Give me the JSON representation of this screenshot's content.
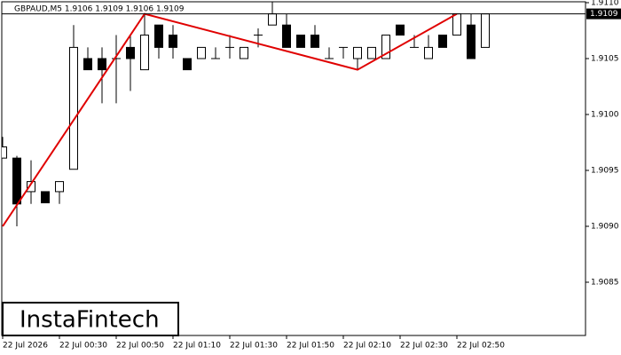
{
  "chart_data": {
    "type": "candlestick",
    "title": "GBPAUD,M5  1.9106 1.9109 1.9106 1.9109",
    "categories": [
      "22 Jul 2026",
      null,
      null,
      null,
      "22 Jul 00:30",
      null,
      null,
      null,
      "22 Jul 00:50",
      null,
      null,
      null,
      "22 Jul 01:10",
      null,
      null,
      null,
      "22 Jul 01:30",
      null,
      null,
      null,
      "22 Jul 01:50",
      null,
      null,
      null,
      "22 Jul 02:10",
      null,
      null,
      null,
      "22 Jul 02:30",
      null,
      null,
      null,
      "22 Jul 02:50",
      null,
      null
    ],
    "open": [
      1.90961,
      1.90961,
      1.90931,
      1.90931,
      1.90931,
      1.90951,
      1.9105,
      1.9105,
      1.9105,
      1.9106,
      1.9104,
      1.9108,
      1.91071,
      1.9105,
      1.9105,
      1.9105,
      1.9106,
      1.9105,
      1.91071,
      1.9108,
      1.9108,
      1.91071,
      1.91071,
      1.9105,
      1.9106,
      1.9105,
      1.9105,
      1.9105,
      1.9108,
      1.9106,
      1.9105,
      1.91071,
      1.91071,
      1.9108,
      1.9106
    ],
    "high": [
      1.9098,
      1.90963,
      1.90959,
      1.90931,
      1.9094,
      1.9108,
      1.9106,
      1.9106,
      1.91071,
      1.91071,
      1.9109,
      1.9108,
      1.9108,
      1.9105,
      1.9106,
      1.9106,
      1.91071,
      1.9106,
      1.91077,
      1.91101,
      1.9109,
      1.91071,
      1.9108,
      1.9106,
      1.9106,
      1.9106,
      1.9106,
      1.91071,
      1.9108,
      1.91071,
      1.91071,
      1.91071,
      1.9109,
      1.9109,
      1.9109
    ],
    "low": [
      1.90961,
      1.909,
      1.9092,
      1.90921,
      1.9092,
      1.90951,
      1.9104,
      1.9101,
      1.9101,
      1.91021,
      1.9104,
      1.9105,
      1.9105,
      1.9104,
      1.9105,
      1.9105,
      1.9105,
      1.9105,
      1.9106,
      1.9108,
      1.9106,
      1.9106,
      1.9106,
      1.9105,
      1.9105,
      1.9104,
      1.9105,
      1.9105,
      1.91071,
      1.9106,
      1.9105,
      1.9106,
      1.91071,
      1.9105,
      1.9106
    ],
    "close": [
      1.90971,
      1.9092,
      1.9094,
      1.90921,
      1.9094,
      1.9106,
      1.9104,
      1.9104,
      1.9105,
      1.9105,
      1.91071,
      1.9106,
      1.9106,
      1.9104,
      1.9106,
      1.9105,
      1.9106,
      1.9106,
      1.91071,
      1.9109,
      1.9106,
      1.9106,
      1.9106,
      1.9105,
      1.9106,
      1.9106,
      1.9106,
      1.91071,
      1.91071,
      1.9106,
      1.9106,
      1.9106,
      1.9109,
      1.9105,
      1.9109
    ],
    "pattern": {
      "color": "#e00000",
      "x": [
        0,
        10,
        25,
        32
      ],
      "values": [
        1.909,
        1.9109,
        1.9104,
        1.9109
      ]
    },
    "current_price": {
      "value": 1.9109,
      "label": "1.9109"
    },
    "ylim": [
      1.908,
      1.911
    ],
    "yticks": [
      {
        "value": 1.9085,
        "label": "1.9085"
      },
      {
        "value": 1.909,
        "label": "1.9090"
      },
      {
        "value": 1.9095,
        "label": "1.9095"
      },
      {
        "value": 1.91,
        "label": "1.9100"
      },
      {
        "value": 1.9105,
        "label": "1.9105"
      },
      {
        "value": 1.911,
        "label": "1.9110"
      }
    ],
    "logo": "InstaFintech"
  }
}
